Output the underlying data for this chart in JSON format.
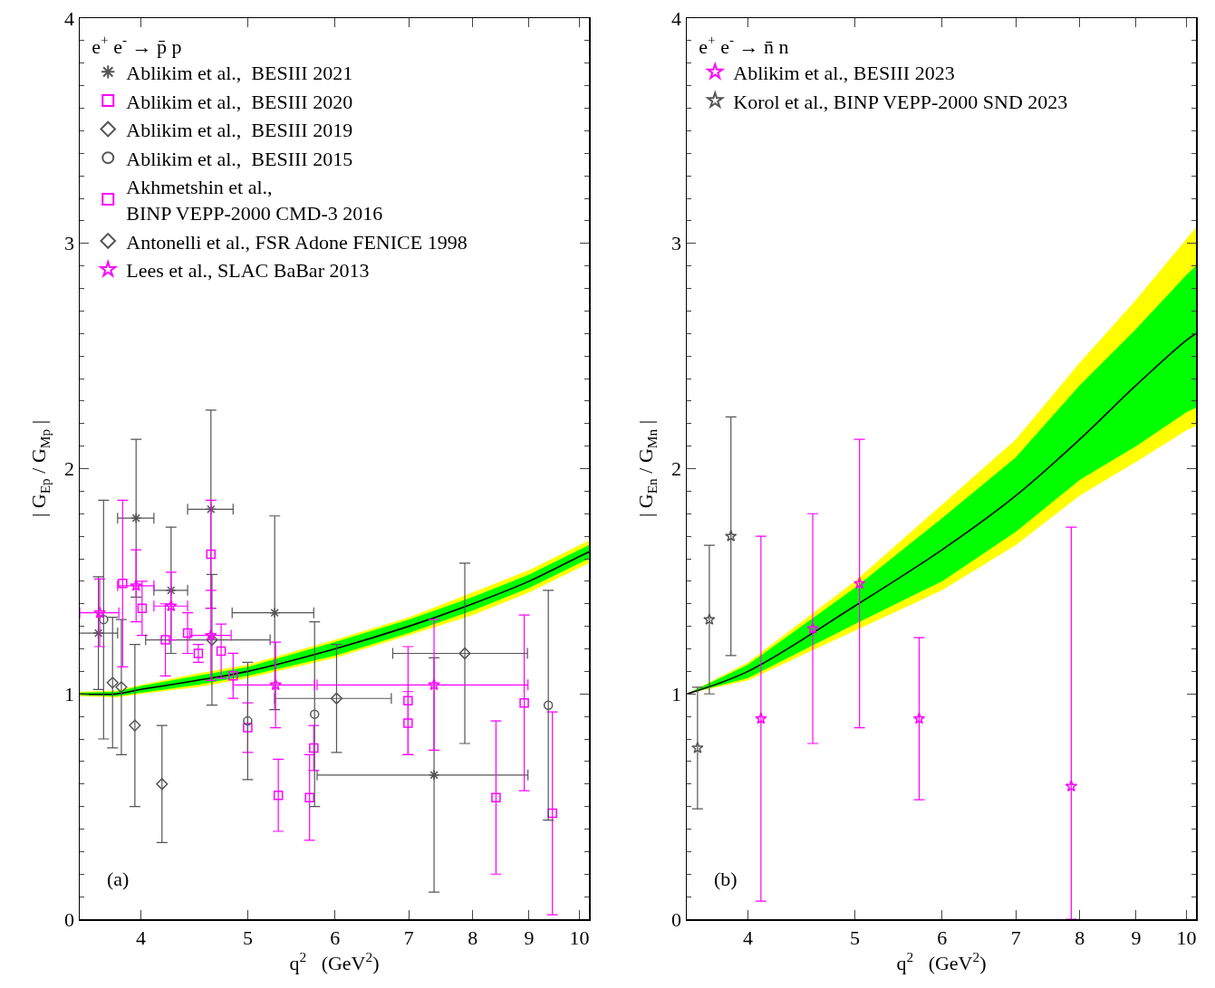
{
  "chart_data": [
    {
      "type": "scatter",
      "xlabel": "q$^{2}$   (GeV$^{2}$)",
      "ylabel": "| G$_{Ep}$ / G$_{Mp}$ |",
      "legend_title": "e$^{+}$ e$^{-}$ → p̄ p",
      "annotations": [
        "(a)"
      ],
      "log": "x",
      "xlim": [
        3.52,
        10.2
      ],
      "xticks": [
        4,
        5,
        6,
        7,
        8,
        9,
        10
      ],
      "ylim": [
        0,
        4
      ],
      "yticks": [
        0,
        1,
        2,
        3,
        4
      ],
      "grid": false,
      "legend": "top left",
      "series": [
        {
          "type": "line",
          "color": "#ffff00",
          "x": [
            3.52,
            3.8,
            4,
            4.5,
            5,
            6,
            7,
            8,
            9,
            10,
            10.2
          ],
          "values": [
            null,
            null,
            null,
            null,
            null,
            null,
            null,
            null,
            null,
            null,
            null
          ],
          "lower": [
            0.99,
            0.985,
            1,
            1.03,
            1.07,
            1.16,
            1.26,
            1.35,
            1.45,
            1.56,
            1.58
          ],
          "upper": [
            1.01,
            1.015,
            1.04,
            1.09,
            1.13,
            1.24,
            1.34,
            1.45,
            1.55,
            1.66,
            1.68
          ]
        },
        {
          "type": "line",
          "color": "#00ff00",
          "x": [
            3.52,
            3.8,
            4,
            4.5,
            5,
            6,
            7,
            8,
            9,
            10,
            10.2
          ],
          "values": [
            null,
            null,
            null,
            null,
            null,
            null,
            null,
            null,
            null,
            null,
            null
          ],
          "lower": [
            0.995,
            0.99,
            1.005,
            1.04,
            1.08,
            1.17,
            1.27,
            1.37,
            1.47,
            1.58,
            1.6
          ],
          "upper": [
            1.005,
            1.01,
            1.035,
            1.08,
            1.12,
            1.23,
            1.33,
            1.43,
            1.53,
            1.64,
            1.66
          ]
        },
        {
          "type": "line",
          "color": "#000000",
          "x": [
            3.52,
            3.8,
            4,
            4.5,
            5,
            6,
            7,
            8,
            9,
            10,
            10.2
          ],
          "values": [
            1,
            1,
            1.02,
            1.06,
            1.1,
            1.2,
            1.3,
            1.4,
            1.5,
            1.61,
            1.63
          ]
        },
        {
          "name": "Ablikim et al.,  BESIII 2021",
          "type": "scatter",
          "marker": "cross",
          "color": "#555555",
          "x": [
            3.66,
            3.96,
            4.26,
            4.63,
            5.29,
            7.38
          ],
          "values": [
            1.27,
            1.78,
            1.46,
            1.82,
            1.36,
            0.64
          ],
          "errors": [
            0.25,
            0.35,
            0.28,
            0.44,
            0.43,
            0.52
          ],
          "xerrors": [
            0.15,
            0.15,
            0.15,
            0.22,
            0.45,
            1.6
          ]
        },
        {
          "name": "Ablikim et al.,  BESIII 2020",
          "type": "scatter",
          "marker": "square",
          "color": "#ff00ff",
          "x": [
            4.21,
            4.41,
            4.51,
            4.63,
            4.73,
            4.85,
            5.0,
            5.33,
            5.69,
            5.74,
            6.99,
            6.99,
            8.4,
            8.91,
            9.45
          ],
          "values": [
            1.24,
            1.27,
            1.18,
            1.62,
            1.19,
            1.08,
            0.85,
            0.55,
            0.54,
            0.76,
            0.97,
            0.87,
            0.54,
            0.96,
            0.47
          ],
          "errors": [
            0.16,
            0.09,
            0.04,
            0.24,
            0.12,
            0.1,
            0.11,
            0.16,
            0.19,
            0.1,
            0.24,
            0.14,
            0.34,
            0.39,
            0.45
          ]
        },
        {
          "name": "Ablikim et al.,  BESIII 2019",
          "type": "scatter",
          "marker": "diamond",
          "color": "#555555",
          "x": [
            3.77,
            3.84,
            3.95,
            4.18
          ],
          "values": [
            1.05,
            1.03,
            0.86,
            0.6
          ],
          "errors": [
            0.29,
            0.3,
            0.36,
            0.26
          ]
        },
        {
          "name": "Ablikim et al.,  BESIII 2015",
          "type": "scatter",
          "marker": "circle",
          "color": "#555555",
          "x": [
            3.7,
            5.0,
            5.75,
            9.37
          ],
          "values": [
            1.33,
            0.88,
            0.91,
            0.95
          ],
          "errors": [
            0.53,
            0.26,
            0.41,
            0.51
          ]
        },
        {
          "name": "Akhmetshin et al.,\nBINP VEPP-2000 CMD-3 2016",
          "type": "scatter",
          "marker": "square",
          "color": "#ff00ff",
          "x": [
            3.85,
            4.01
          ],
          "values": [
            1.49,
            1.38
          ],
          "errors": [
            0.37,
            0.12
          ]
        },
        {
          "name": "Antonelli et al., FSR Adone FENICE 1998",
          "type": "scatter",
          "marker": "diamond",
          "color": "#555555",
          "x": [
            4.64,
            6.02,
            7.87
          ],
          "values": [
            1.24,
            0.98,
            1.18
          ],
          "errors": [
            0.29,
            0.24,
            0.4
          ],
          "xerrors": [
            0.6,
            0.73,
            1.1
          ]
        },
        {
          "name": "Lees et al., SLAC BaBar 2013",
          "type": "scatter",
          "marker": "star",
          "color": "#ff00ff",
          "x": [
            3.67,
            3.96,
            4.26,
            4.63,
            5.3,
            7.38
          ],
          "values": [
            1.36,
            1.48,
            1.39,
            1.26,
            1.04,
            1.04
          ],
          "errors": [
            0.15,
            0.16,
            0.15,
            0.2,
            0.19,
            0.29
          ],
          "xerrors": [
            0.15,
            0.15,
            0.15,
            0.2,
            0.45,
            1.6
          ]
        }
      ]
    },
    {
      "type": "scatter",
      "xlabel": "q$^{2}$   (GeV$^{2}$)",
      "ylabel": "| G$_{En}$ / G$_{Mn}$ |",
      "legend_title": "e$^{+}$ e$^{-}$ → n̄ n",
      "annotations": [
        "(b)"
      ],
      "log": "x",
      "xlim": [
        3.52,
        10.2
      ],
      "xticks": [
        4,
        5,
        6,
        7,
        8,
        9,
        10
      ],
      "ylim": [
        0,
        4
      ],
      "yticks": [
        0,
        1,
        2,
        3,
        4
      ],
      "grid": false,
      "legend": "top left",
      "series": [
        {
          "type": "line",
          "color": "#ffff00",
          "x": [
            3.52,
            4,
            5,
            6,
            7,
            8,
            9,
            10,
            10.2
          ],
          "values": [
            null,
            null,
            null,
            null,
            null,
            null,
            null,
            null,
            null
          ],
          "lower": [
            1,
            1.06,
            1.28,
            1.46,
            1.66,
            1.88,
            2.03,
            2.17,
            2.19
          ],
          "upper": [
            1,
            1.14,
            1.5,
            1.84,
            2.13,
            2.47,
            2.75,
            3.02,
            3.07
          ]
        },
        {
          "type": "line",
          "color": "#00ff00",
          "x": [
            3.52,
            4,
            5,
            6,
            7,
            8,
            9,
            10,
            10.2
          ],
          "values": [
            null,
            null,
            null,
            null,
            null,
            null,
            null,
            null,
            null
          ],
          "lower": [
            1,
            1.07,
            1.31,
            1.5,
            1.72,
            1.95,
            2.1,
            2.25,
            2.27
          ],
          "upper": [
            1,
            1.13,
            1.47,
            1.78,
            2.05,
            2.37,
            2.62,
            2.86,
            2.9
          ]
        },
        {
          "type": "line",
          "color": "#000000",
          "x": [
            3.52,
            4,
            5,
            6,
            7,
            8,
            9,
            10,
            10.2
          ],
          "values": [
            1,
            1.1,
            1.39,
            1.64,
            1.88,
            2.13,
            2.37,
            2.57,
            2.6
          ]
        },
        {
          "name": "Ablikim et al., BESIII 2023",
          "type": "scatter",
          "marker": "star",
          "color": "#ff00ff",
          "x": [
            4.11,
            4.58,
            5.05,
            5.72,
            7.86
          ],
          "values": [
            0.89,
            1.29,
            1.49,
            0.89,
            0.59
          ],
          "errors": [
            0.81,
            0.51,
            0.64,
            0.36,
            [
              0,
              1.74
            ]
          ]
        },
        {
          "name": "Korol et al., BINP VEPP-2000 SND 2023",
          "type": "scatter",
          "marker": "star",
          "color": "#555555",
          "x": [
            3.6,
            3.69,
            3.86
          ],
          "values": [
            0.76,
            1.33,
            1.7
          ],
          "errors": [
            0.27,
            0.33,
            0.53
          ]
        }
      ]
    }
  ]
}
